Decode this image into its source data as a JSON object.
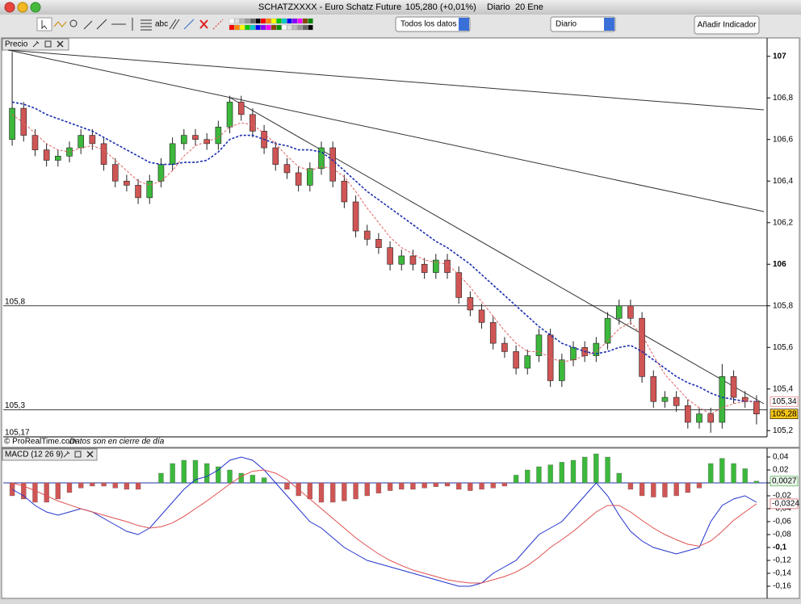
{
  "window": {
    "title": "SCHATZXXXX - Euro Schatz Future",
    "quote": "105,280 (+0,01%)",
    "period": "Diario",
    "date": "20 Ene"
  },
  "toolbar": {
    "text_tool": "abc",
    "range_select": "Todos los datos",
    "period_select": "Diario",
    "add_indicator": "Añadir Indicador"
  },
  "footer": {
    "brand": "© ProRealTime.com",
    "note": "Datos son en cierre de día"
  },
  "chart_data": [
    {
      "type": "candlestick",
      "title": "Precio",
      "open": [
        106.6,
        106.75,
        106.62,
        106.55,
        106.5,
        106.52,
        106.56,
        106.62,
        106.58,
        106.48,
        106.4,
        106.38,
        106.32,
        106.4,
        106.48,
        106.58,
        106.62,
        106.6,
        106.58,
        106.66,
        106.78,
        106.72,
        106.64,
        106.56,
        106.48,
        106.44,
        106.38,
        106.46,
        106.56,
        106.4,
        106.3,
        106.16,
        106.12,
        106.08,
        106.0,
        106.04,
        106.0,
        105.96,
        106.02,
        105.96,
        105.84,
        105.78,
        105.72,
        105.62,
        105.58,
        105.5,
        105.56,
        105.66,
        105.44,
        105.54,
        105.6,
        105.56,
        105.62,
        105.74,
        105.8,
        105.74,
        105.46,
        105.34,
        105.36,
        105.32,
        105.24,
        105.28,
        105.24,
        105.46,
        105.36,
        105.34
      ],
      "high": [
        107.02,
        106.78,
        106.65,
        106.58,
        106.55,
        106.59,
        106.65,
        106.65,
        106.61,
        106.51,
        106.43,
        106.41,
        106.43,
        106.51,
        106.61,
        106.65,
        106.65,
        106.63,
        106.69,
        106.81,
        106.81,
        106.75,
        106.67,
        106.59,
        106.51,
        106.47,
        106.49,
        106.59,
        106.59,
        106.43,
        106.33,
        106.19,
        106.15,
        106.11,
        106.07,
        106.07,
        106.03,
        106.05,
        106.05,
        105.99,
        105.87,
        105.81,
        105.75,
        105.65,
        105.61,
        105.59,
        105.69,
        105.69,
        105.57,
        105.63,
        105.63,
        105.65,
        105.77,
        105.83,
        105.83,
        105.77,
        105.49,
        105.39,
        105.39,
        105.35,
        105.31,
        105.31,
        105.52,
        105.49,
        105.39,
        105.37
      ],
      "low": [
        106.57,
        106.59,
        106.52,
        106.47,
        106.47,
        106.49,
        106.53,
        106.55,
        106.45,
        106.37,
        106.35,
        106.29,
        106.29,
        106.37,
        106.45,
        106.55,
        106.57,
        106.55,
        106.55,
        106.63,
        106.69,
        106.61,
        106.53,
        106.45,
        106.41,
        106.35,
        106.35,
        106.43,
        106.37,
        106.27,
        106.13,
        106.09,
        106.05,
        105.97,
        105.97,
        105.97,
        105.93,
        105.93,
        105.93,
        105.81,
        105.75,
        105.69,
        105.59,
        105.55,
        105.47,
        105.47,
        105.53,
        105.41,
        105.41,
        105.51,
        105.53,
        105.53,
        105.59,
        105.71,
        105.71,
        105.43,
        105.31,
        105.31,
        105.29,
        105.21,
        105.21,
        105.19,
        105.21,
        105.33,
        105.31,
        105.23
      ],
      "close": [
        106.75,
        106.62,
        106.55,
        106.5,
        106.52,
        106.56,
        106.62,
        106.58,
        106.48,
        106.4,
        106.38,
        106.32,
        106.4,
        106.48,
        106.58,
        106.62,
        106.6,
        106.58,
        106.66,
        106.78,
        106.72,
        106.64,
        106.56,
        106.48,
        106.44,
        106.38,
        106.46,
        106.56,
        106.4,
        106.3,
        106.16,
        106.12,
        106.08,
        106.0,
        106.04,
        106.0,
        105.96,
        106.02,
        105.96,
        105.84,
        105.78,
        105.72,
        105.62,
        105.58,
        105.5,
        105.56,
        105.66,
        105.44,
        105.54,
        105.6,
        105.56,
        105.62,
        105.74,
        105.8,
        105.74,
        105.46,
        105.34,
        105.36,
        105.32,
        105.24,
        105.28,
        105.24,
        105.46,
        105.36,
        105.34,
        105.28
      ],
      "up_color": "#3cb83c",
      "down_color": "#d05555",
      "series": [
        {
          "color": "#1a2db0",
          "values": [
            106.78,
            106.77,
            106.75,
            106.72,
            106.7,
            106.68,
            106.66,
            106.64,
            106.61,
            106.58,
            106.55,
            106.52,
            106.49,
            106.48,
            106.48,
            106.49,
            106.49,
            106.5,
            106.54,
            106.6,
            106.62,
            106.62,
            106.6,
            106.58,
            106.57,
            106.55,
            106.55,
            106.54,
            106.5,
            106.45,
            106.4,
            106.35,
            106.31,
            106.27,
            106.23,
            106.19,
            106.15,
            106.11,
            106.08,
            106.04,
            106.0,
            105.95,
            105.9,
            105.85,
            105.8,
            105.75,
            105.7,
            105.66,
            105.62,
            105.6,
            105.58,
            105.57,
            105.58,
            105.6,
            105.61,
            105.58,
            105.54,
            105.5,
            105.46,
            105.43,
            105.41,
            105.38,
            105.36,
            105.35,
            105.34,
            105.34
          ]
        },
        {
          "color": "#e06060",
          "values": [
            106.72,
            106.68,
            106.63,
            106.58,
            106.55,
            106.54,
            106.56,
            106.57,
            106.55,
            106.5,
            106.45,
            106.4,
            106.38,
            106.4,
            106.45,
            106.52,
            106.57,
            106.59,
            106.61,
            106.66,
            106.68,
            106.67,
            106.63,
            106.58,
            106.52,
            106.47,
            106.45,
            106.47,
            106.46,
            106.42,
            106.35,
            106.27,
            106.2,
            106.13,
            106.08,
            106.05,
            106.02,
            106.01,
            106.0,
            105.95,
            105.89,
            105.82,
            105.75,
            105.68,
            105.62,
            105.58,
            105.58,
            105.55,
            105.53,
            105.54,
            105.56,
            105.58,
            105.63,
            105.69,
            105.72,
            105.66,
            105.56,
            105.47,
            105.41,
            105.35,
            105.31,
            105.28,
            105.31,
            105.33,
            105.34,
            105.34
          ]
        }
      ],
      "ylim": [
        105.17,
        107.03
      ],
      "yticks": [
        {
          "value": 105.2,
          "label": "105,2"
        },
        {
          "value": 105.4,
          "label": "105,4"
        },
        {
          "value": 105.6,
          "label": "105,6"
        },
        {
          "value": 105.8,
          "label": "105,8"
        },
        106,
        {
          "value": 106.2,
          "label": "106,2"
        },
        {
          "value": 106.4,
          "label": "106,4"
        },
        {
          "value": 106.6,
          "label": "106,6"
        },
        {
          "value": 106.8,
          "label": "106,8"
        },
        107
      ],
      "hlines": [
        {
          "value": 105.8,
          "label": "105,8"
        },
        {
          "value": 105.3,
          "label": "105,3"
        },
        {
          "value": 105.17,
          "label": "105,17"
        }
      ],
      "end_labels": [
        {
          "value": 105.34,
          "label": "105,34",
          "color": "#e06060",
          "bg": "#ffffff"
        },
        {
          "value": 105.28,
          "label": "105,28",
          "color": "#000000",
          "bg": "#f5c518"
        }
      ]
    },
    {
      "type": "macd",
      "title": "MACD (12 26 9)",
      "histogram": [
        -0.02,
        -0.025,
        -0.03,
        -0.03,
        -0.025,
        -0.015,
        -0.008,
        -0.005,
        -0.005,
        -0.008,
        -0.01,
        -0.01,
        0.0,
        0.015,
        0.03,
        0.035,
        0.035,
        0.03,
        0.025,
        0.02,
        0.015,
        0.012,
        0.008,
        0.0,
        -0.01,
        -0.02,
        -0.025,
        -0.03,
        -0.03,
        -0.028,
        -0.025,
        -0.02,
        -0.016,
        -0.012,
        -0.01,
        -0.01,
        -0.008,
        -0.006,
        -0.005,
        -0.01,
        -0.012,
        -0.01,
        -0.008,
        -0.005,
        0.012,
        0.02,
        0.025,
        0.028,
        0.032,
        0.035,
        0.04,
        0.045,
        0.04,
        0.015,
        -0.01,
        -0.02,
        -0.022,
        -0.022,
        -0.02,
        -0.015,
        -0.008,
        0.03,
        0.038,
        0.03,
        0.022,
        0.0027
      ],
      "pos_color": "#3cb83c",
      "neg_color": "#d05555",
      "series": [
        {
          "color": "#2233cc",
          "values": [
            -0.01,
            -0.02,
            -0.035,
            -0.045,
            -0.05,
            -0.045,
            -0.04,
            -0.045,
            -0.055,
            -0.065,
            -0.075,
            -0.08,
            -0.07,
            -0.05,
            -0.03,
            -0.01,
            0.005,
            0.01,
            0.02,
            0.035,
            0.04,
            0.035,
            0.02,
            0.0,
            -0.02,
            -0.04,
            -0.06,
            -0.07,
            -0.085,
            -0.1,
            -0.11,
            -0.12,
            -0.125,
            -0.13,
            -0.135,
            -0.14,
            -0.145,
            -0.15,
            -0.155,
            -0.16,
            -0.16,
            -0.155,
            -0.14,
            -0.13,
            -0.12,
            -0.1,
            -0.08,
            -0.07,
            -0.06,
            -0.04,
            -0.02,
            0.0,
            -0.02,
            -0.05,
            -0.075,
            -0.09,
            -0.1,
            -0.105,
            -0.11,
            -0.105,
            -0.1,
            -0.06,
            -0.035,
            -0.025,
            -0.02,
            -0.03
          ]
        },
        {
          "color": "#e05050",
          "values": [
            0.0,
            -0.005,
            -0.012,
            -0.02,
            -0.028,
            -0.034,
            -0.04,
            -0.045,
            -0.05,
            -0.055,
            -0.06,
            -0.066,
            -0.07,
            -0.068,
            -0.062,
            -0.052,
            -0.04,
            -0.028,
            -0.015,
            -0.002,
            0.01,
            0.018,
            0.02,
            0.015,
            0.005,
            -0.01,
            -0.025,
            -0.04,
            -0.055,
            -0.07,
            -0.085,
            -0.098,
            -0.11,
            -0.12,
            -0.128,
            -0.135,
            -0.14,
            -0.145,
            -0.15,
            -0.153,
            -0.155,
            -0.155,
            -0.15,
            -0.145,
            -0.138,
            -0.128,
            -0.115,
            -0.1,
            -0.088,
            -0.075,
            -0.06,
            -0.045,
            -0.035,
            -0.035,
            -0.045,
            -0.058,
            -0.07,
            -0.08,
            -0.088,
            -0.095,
            -0.098,
            -0.09,
            -0.075,
            -0.058,
            -0.045,
            -0.0324
          ]
        }
      ],
      "ylim": [
        -0.1775,
        0.0475
      ],
      "yticks": [
        {
          "value": 0.04,
          "label": "0,04"
        },
        {
          "value": 0.02,
          "label": "0,02"
        },
        0,
        {
          "value": -0.02,
          "label": "-0,02"
        },
        {
          "value": -0.04,
          "label": "-0,04"
        },
        {
          "value": -0.06,
          "label": "-0,06"
        },
        {
          "value": -0.08,
          "label": "-0,08"
        },
        {
          "value": -0.1,
          "label": "-0,1"
        },
        {
          "value": -0.12,
          "label": "-0,12"
        },
        {
          "value": -0.14,
          "label": "-0,14"
        },
        {
          "value": -0.16,
          "label": "-0,16"
        }
      ],
      "end_labels": [
        {
          "value": 0.0027,
          "label": "0,0027",
          "color": "#2a9a2a",
          "bg": "#eaf6ea"
        },
        {
          "value": -0.0324,
          "label": "-0,0324",
          "color": "#d03030",
          "bg": "#ffffff"
        }
      ]
    }
  ]
}
